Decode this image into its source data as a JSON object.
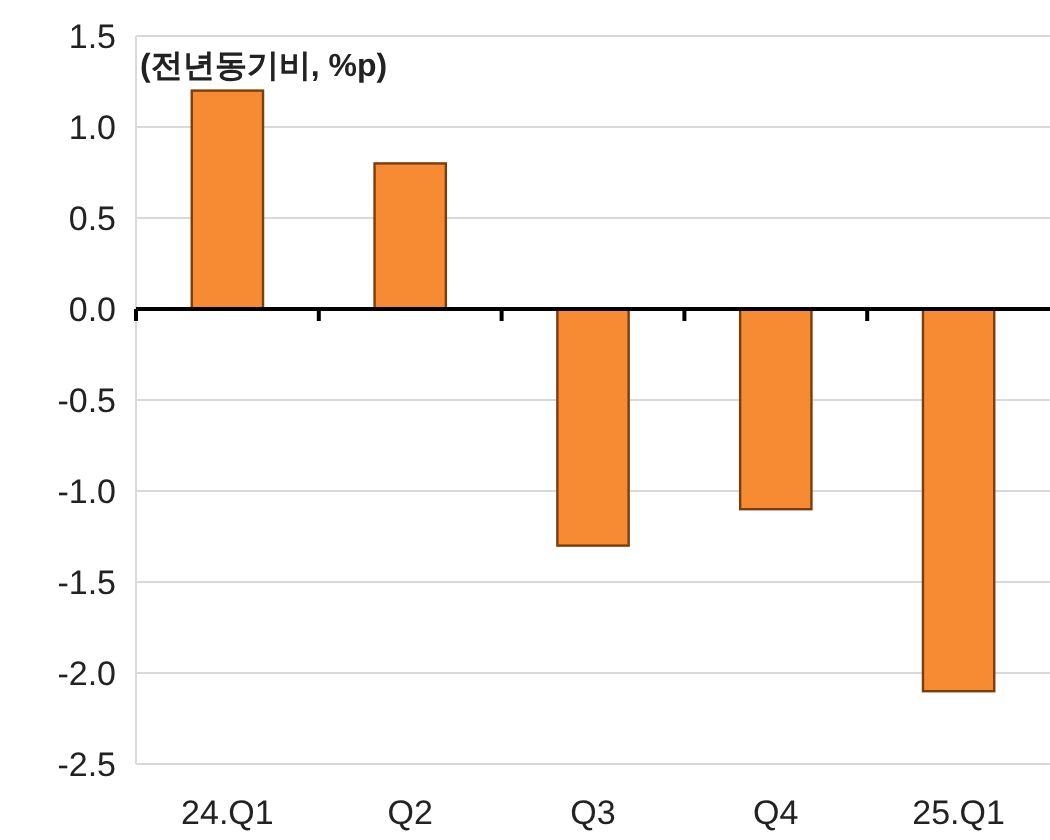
{
  "chart_data": {
    "type": "bar",
    "ylabel": "(전년동기비, %p)",
    "categories": [
      "24.Q1",
      "Q2",
      "Q3",
      "Q4",
      "25.Q1"
    ],
    "values": [
      1.2,
      0.8,
      -1.3,
      -1.1,
      -2.1
    ],
    "color": "#f68b34",
    "ylim": [
      -2.5,
      1.5
    ],
    "yticks": [
      -2.5,
      {
        "value": -2,
        "label": "-2.0"
      },
      -1.5,
      {
        "value": -1,
        "label": "-1.0"
      },
      -0.5,
      {
        "value": 0,
        "label": "0.0"
      },
      0.5,
      {
        "value": 1,
        "label": "1.0"
      },
      1.5
    ],
    "grid": "y"
  }
}
